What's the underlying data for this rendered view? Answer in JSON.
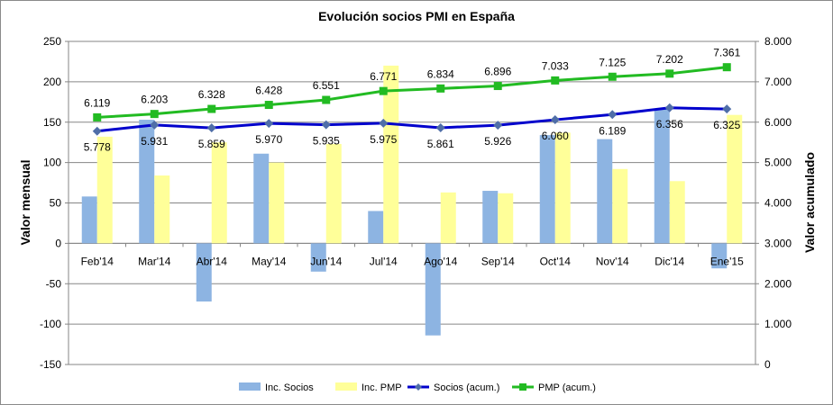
{
  "chart_data": {
    "type": "bar",
    "title": "Evolución socios PMI en España",
    "ylabel": "Valor mensual",
    "y2label": "Valor acumulado",
    "categories": [
      "Feb'14",
      "Mar'14",
      "Abr'14",
      "May'14",
      "Jun'14",
      "Jul'14",
      "Ago'14",
      "Sep'14",
      "Oct'14",
      "Nov'14",
      "Dic'14",
      "Ene'15"
    ],
    "ylim": [
      -150,
      250
    ],
    "yticks": [
      -150,
      -100,
      -50,
      0,
      50,
      100,
      150,
      200,
      250
    ],
    "y2lim": [
      0,
      8000
    ],
    "y2ticks": [
      0,
      1000,
      2000,
      3000,
      4000,
      5000,
      6000,
      7000,
      8000
    ],
    "y2tick_labels": [
      "0",
      "1.000",
      "2.000",
      "3.000",
      "4.000",
      "5.000",
      "6.000",
      "7.000",
      "8.000"
    ],
    "grid": "horizontal",
    "legend_position": "bottom",
    "series": [
      {
        "name": "Inc. Socios",
        "type": "bar",
        "axis": "left",
        "color": "#8db4e2",
        "values": [
          58,
          153,
          -72,
          111,
          -35,
          40,
          -114,
          65,
          134,
          129,
          167,
          -31
        ]
      },
      {
        "name": "Inc. PMP",
        "type": "bar",
        "axis": "left",
        "color": "#ffff99",
        "values": [
          132,
          84,
          125,
          100,
          123,
          220,
          63,
          62,
          137,
          92,
          77,
          159
        ]
      },
      {
        "name": "Socios (acum.)",
        "type": "line",
        "axis": "right",
        "color": "#0000cc",
        "marker": "diamond",
        "values": [
          5778,
          5931,
          5859,
          5970,
          5935,
          5975,
          5861,
          5926,
          6060,
          6189,
          6356,
          6325
        ],
        "labels": [
          "5.778",
          "5.931",
          "5.859",
          "5.970",
          "5.935",
          "5.975",
          "5.861",
          "5.926",
          "6.060",
          "6.189",
          "6.356",
          "6.325"
        ]
      },
      {
        "name": "PMP (acum.)",
        "type": "line",
        "axis": "right",
        "color": "#22bb22",
        "marker": "square",
        "values": [
          6119,
          6203,
          6328,
          6428,
          6551,
          6771,
          6834,
          6896,
          7033,
          7125,
          7202,
          7361
        ],
        "labels": [
          "6.119",
          "6.203",
          "6.328",
          "6.428",
          "6.551",
          "6.771",
          "6.834",
          "6.896",
          "7.033",
          "7.125",
          "7.202",
          "7.361"
        ]
      }
    ]
  }
}
